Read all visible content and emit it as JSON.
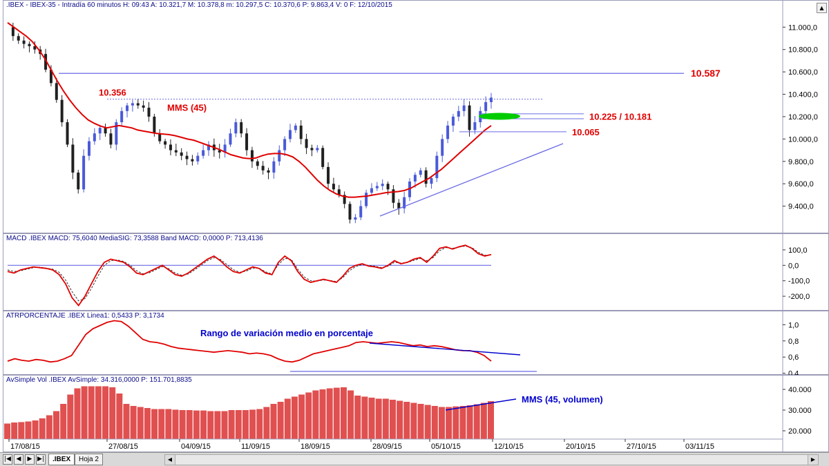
{
  "panes": {
    "price_title": ".IBEX - IBEX-35 - Intradía 60 minutos H: 09:43 A: 10.321,7 M: 10.378,8 m: 10.297,5 C: 10.370,6 P: 9.863,4 V: 0 F: 12/10/2015",
    "macd_title": "MACD .IBEX MACD: 75,6040 MediaSIG: 73,3588 Band MACD: 0,0000 P: 713,4136",
    "atr_title": "ATRPORCENTAJE .IBEX Linea1: 0,5433 P: 3,1734",
    "vol_title": "AvSimple Vol .IBEX AvSimple: 34.316,0000 P: 151.701,8835"
  },
  "annotations": {
    "level_10587": "10.587",
    "level_10356": "10.356",
    "mms45": "MMS (45)",
    "level_10225": "10.225 / 10.181",
    "level_10065": "10.065",
    "atr_label": "Rango de variación medio en porcentaje",
    "vol_label": "MMS (45, volumen)"
  },
  "colors": {
    "ma": "#e00000",
    "trendline": "#6a6ae6",
    "annotation": "#e00000",
    "annotation_blue": "#0000cc",
    "candle_up": "#4a5ad8",
    "candle_down": "#202020",
    "volume": "#e05050",
    "highlight": "#00cc00"
  },
  "tabs": {
    "sheet1": ".IBEX",
    "sheet2": "Hoja 2"
  },
  "chart_data": [
    {
      "type": "line",
      "title": ".IBEX - IBEX-35 - Intradía 60 minutos",
      "x_tick_labels": [
        "17/08/15",
        "27/08/15",
        "04/09/15",
        "11/09/15",
        "18/09/15",
        "28/09/15",
        "05/10/15",
        "12/10/15",
        "20/10/15",
        "27/10/15",
        "03/11/15"
      ],
      "y_tick_labels": [
        "11.000,0",
        "10.800,0",
        "10.600,0",
        "10.400,0",
        "10.200,0",
        "10.000,0",
        "9.800,0",
        "9.600,0",
        "9.400,0"
      ],
      "ylim": [
        9200,
        11150
      ],
      "series": [
        {
          "name": "",
          "kind": "close",
          "values": [
            11000,
            10920,
            10880,
            10850,
            10830,
            10800,
            10760,
            10620,
            10500,
            10350,
            10150,
            9950,
            9700,
            9550,
            9850,
            9980,
            10050,
            10100,
            10050,
            9950,
            10150,
            10250,
            10300,
            10320,
            10300,
            10280,
            10200,
            10050,
            9980,
            9950,
            9900,
            9880,
            9850,
            9820,
            9800,
            9850,
            9900,
            9950,
            9900,
            9880,
            9950,
            10050,
            10150,
            10050,
            9900,
            9800,
            9760,
            9720,
            9700,
            9800,
            9900,
            10000,
            10080,
            10120,
            10000,
            9920,
            9900,
            9920,
            9750,
            9600,
            9550,
            9500,
            9420,
            9280,
            9300,
            9400,
            9520,
            9560,
            9580,
            9600,
            9550,
            9430,
            9380,
            9480,
            9620,
            9680,
            9720,
            9600,
            9650,
            9850,
            10000,
            10120,
            10200,
            10250,
            10300,
            10080,
            10150,
            10250,
            10330,
            10370
          ]
        },
        {
          "name": "MMS (45)",
          "kind": "ma",
          "values": [
            11040,
            11000,
            10960,
            10920,
            10870,
            10800,
            10720,
            10620,
            10520,
            10430,
            10350,
            10280,
            10220,
            10170,
            10140,
            10115,
            10100,
            10110,
            10120,
            10110,
            10100,
            10080,
            10070,
            10060,
            10050,
            10045,
            10040,
            10030,
            10015,
            10000,
            9990,
            9970,
            9950,
            9930,
            9910,
            9885,
            9860,
            9845,
            9830,
            9825,
            9830,
            9850,
            9865,
            9870,
            9870,
            9860,
            9840,
            9800,
            9750,
            9690,
            9630,
            9580,
            9540,
            9510,
            9490,
            9480,
            9480,
            9485,
            9490,
            9500,
            9510,
            9520,
            9525,
            9530,
            9540,
            9560,
            9590,
            9620,
            9650,
            9690,
            9730,
            9780,
            9830,
            9880,
            9930,
            9980,
            10030,
            10080,
            10120
          ]
        }
      ],
      "levels": [
        10587,
        10356,
        10225,
        10181,
        10065
      ]
    },
    {
      "type": "line",
      "title": "MACD",
      "y_tick_labels": [
        "100,0",
        "0,0",
        "-100,0",
        "-200,0"
      ],
      "ylim": [
        -280,
        140
      ],
      "series": [
        {
          "name": "MACD",
          "values": [
            -40,
            -50,
            -30,
            -20,
            -10,
            -15,
            -20,
            -30,
            -60,
            -120,
            -210,
            -260,
            -200,
            -120,
            -40,
            20,
            40,
            30,
            20,
            -10,
            -50,
            -60,
            -40,
            -20,
            0,
            -30,
            -60,
            -70,
            -50,
            -20,
            10,
            40,
            60,
            30,
            -10,
            -40,
            -50,
            -30,
            -10,
            -20,
            -50,
            -60,
            20,
            60,
            30,
            -40,
            -90,
            -110,
            -100,
            -90,
            -100,
            -110,
            -70,
            -20,
            0,
            10,
            -5,
            -10,
            -20,
            0,
            30,
            10,
            20,
            40,
            50,
            20,
            60,
            110,
            120,
            105,
            120,
            130,
            110,
            75,
            60,
            70
          ]
        },
        {
          "name": "MediaSIG",
          "values": [
            -30,
            -40,
            -35,
            -25,
            -15,
            -12,
            -18,
            -25,
            -45,
            -95,
            -170,
            -230,
            -215,
            -150,
            -70,
            0,
            30,
            35,
            25,
            0,
            -35,
            -55,
            -48,
            -28,
            -8,
            -22,
            -50,
            -64,
            -56,
            -30,
            0,
            30,
            50,
            38,
            5,
            -28,
            -45,
            -38,
            -18,
            -18,
            -42,
            -56,
            5,
            45,
            38,
            -25,
            -75,
            -100,
            -102,
            -95,
            -98,
            -105,
            -80,
            -35,
            -8,
            5,
            0,
            -6,
            -15,
            -5,
            20,
            15,
            18,
            32,
            45,
            30,
            50,
            95,
            115,
            110,
            118,
            125,
            115,
            85,
            65,
            68
          ]
        }
      ]
    },
    {
      "type": "line",
      "title": "ATRPORCENTAJE",
      "y_tick_labels": [
        "1,0",
        "0,8",
        "0,6",
        "0,4"
      ],
      "ylim": [
        0.38,
        1.08
      ],
      "series": [
        {
          "name": "Linea1",
          "values": [
            0.55,
            0.58,
            0.56,
            0.55,
            0.57,
            0.56,
            0.54,
            0.55,
            0.58,
            0.62,
            0.75,
            0.88,
            0.95,
            0.99,
            1.03,
            1.05,
            1.04,
            0.98,
            0.9,
            0.82,
            0.79,
            0.78,
            0.76,
            0.73,
            0.71,
            0.7,
            0.69,
            0.68,
            0.67,
            0.66,
            0.67,
            0.68,
            0.67,
            0.66,
            0.64,
            0.65,
            0.64,
            0.62,
            0.58,
            0.55,
            0.54,
            0.56,
            0.6,
            0.64,
            0.66,
            0.68,
            0.7,
            0.72,
            0.74,
            0.78,
            0.79,
            0.78,
            0.77,
            0.78,
            0.79,
            0.78,
            0.76,
            0.74,
            0.75,
            0.73,
            0.74,
            0.73,
            0.71,
            0.69,
            0.68,
            0.68,
            0.66,
            0.62,
            0.55
          ]
        }
      ]
    },
    {
      "type": "bar",
      "title": "AvSimple Vol",
      "y_tick_labels": [
        "40.000",
        "30.000",
        "20.000"
      ],
      "ylim": [
        16000,
        42000
      ],
      "series": [
        {
          "name": "AvSimple",
          "values": [
            23500,
            24000,
            24200,
            24500,
            25000,
            26000,
            27500,
            29500,
            33000,
            37500,
            40500,
            41500,
            41500,
            41500,
            41500,
            41000,
            38000,
            33000,
            32000,
            31500,
            31000,
            30500,
            30500,
            30500,
            30200,
            30000,
            30000,
            29800,
            29800,
            29500,
            29500,
            29500,
            30000,
            30000,
            30000,
            30200,
            30500,
            31500,
            33000,
            34000,
            35500,
            36500,
            37500,
            38500,
            39500,
            40000,
            40500,
            40800,
            41000,
            39500,
            37000,
            36500,
            36000,
            35500,
            35500,
            35000,
            34500,
            34000,
            33500,
            33000,
            32500,
            32000,
            31500,
            31500,
            31800,
            32000,
            32300,
            32800,
            33500,
            34300
          ]
        }
      ]
    }
  ]
}
